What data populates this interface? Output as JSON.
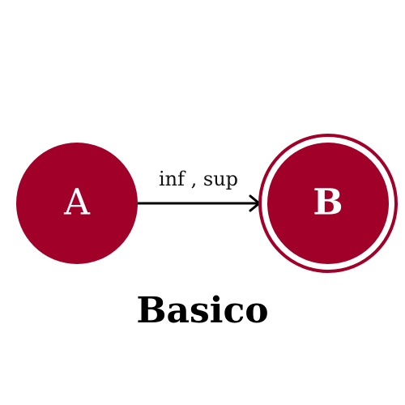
{
  "diagram": {
    "nodes": [
      {
        "id": "A",
        "label": "A",
        "accepting": false
      },
      {
        "id": "B",
        "label": "B",
        "accepting": true
      }
    ],
    "edges": [
      {
        "from": "A",
        "to": "B",
        "label": "inf , sup"
      }
    ],
    "caption": "Basico"
  },
  "colors": {
    "node_fill": "#a10029",
    "node_text": "#ffffff",
    "edge": "#000000",
    "background": "#ffffff"
  }
}
